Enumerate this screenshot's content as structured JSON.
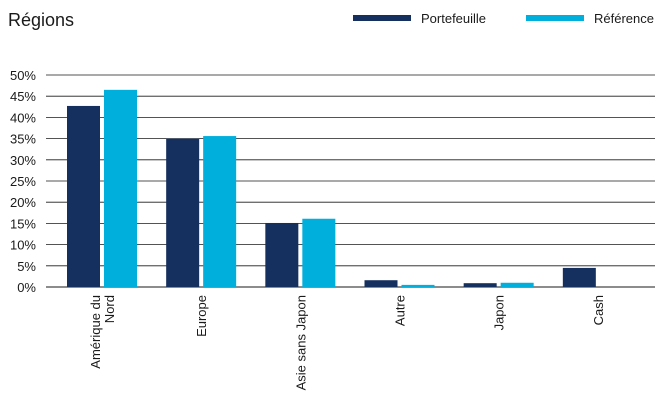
{
  "chart_data": {
    "type": "bar",
    "title": "Régions",
    "categories": [
      [
        "Amérique du",
        "Nord"
      ],
      [
        "Europe"
      ],
      [
        "Asie sans Japon"
      ],
      [
        "Autre"
      ],
      [
        "Japon"
      ],
      [
        "Cash"
      ]
    ],
    "series": [
      {
        "name": "Portefeuille",
        "color": "#15305f",
        "values": [
          42.7,
          35.0,
          15.1,
          1.6,
          0.9,
          4.5
        ]
      },
      {
        "name": "Référence",
        "color": "#00afdc",
        "values": [
          46.5,
          35.6,
          16.1,
          0.5,
          1.0,
          0
        ]
      }
    ],
    "ylim": [
      0,
      50
    ],
    "yticks": [
      "0%",
      "5%",
      "10%",
      "15%",
      "20%",
      "25%",
      "30%",
      "35%",
      "40%",
      "45%",
      "50%"
    ],
    "ytick_values": [
      0,
      5,
      10,
      15,
      20,
      25,
      30,
      35,
      40,
      45,
      50
    ],
    "grid": true,
    "legend_position": "top-right"
  }
}
